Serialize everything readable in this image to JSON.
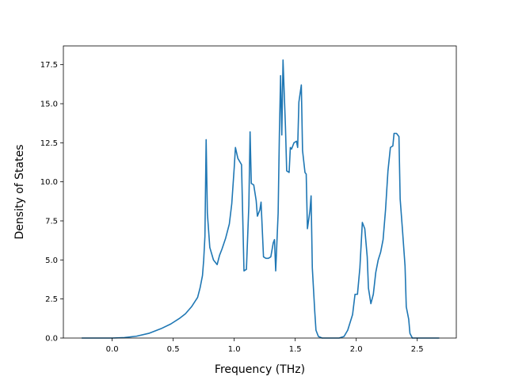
{
  "chart_data": {
    "type": "line",
    "title": "",
    "xlabel": "Frequency (THz)",
    "ylabel": "Density of States",
    "xlim": [
      -0.4,
      2.82
    ],
    "ylim": [
      0,
      18.7
    ],
    "grid": false,
    "legend": "none",
    "color": "#1f77b4",
    "x_ticks": [
      {
        "value": 0.0,
        "label": "0.0"
      },
      {
        "value": 0.5,
        "label": "0.5"
      },
      {
        "value": 1.0,
        "label": "1.0"
      },
      {
        "value": 1.5,
        "label": "1.5"
      },
      {
        "value": 2.0,
        "label": "2.0"
      },
      {
        "value": 2.5,
        "label": "2.5"
      }
    ],
    "y_ticks": [
      {
        "value": 0.0,
        "label": "0.0"
      },
      {
        "value": 2.5,
        "label": "2.5"
      },
      {
        "value": 5.0,
        "label": "5.0"
      },
      {
        "value": 7.5,
        "label": "7.5"
      },
      {
        "value": 10.0,
        "label": "10.0"
      },
      {
        "value": 12.5,
        "label": "12.5"
      },
      {
        "value": 15.0,
        "label": "15.0"
      },
      {
        "value": 17.5,
        "label": "17.5"
      }
    ],
    "series": [
      {
        "points": [
          [
            -0.25,
            0.0
          ],
          [
            -0.1,
            0.0
          ],
          [
            0.0,
            0.0
          ],
          [
            0.1,
            0.03
          ],
          [
            0.2,
            0.12
          ],
          [
            0.3,
            0.3
          ],
          [
            0.4,
            0.6
          ],
          [
            0.48,
            0.9
          ],
          [
            0.55,
            1.25
          ],
          [
            0.6,
            1.55
          ],
          [
            0.65,
            2.0
          ],
          [
            0.7,
            2.6
          ],
          [
            0.72,
            3.2
          ],
          [
            0.74,
            4.0
          ],
          [
            0.75,
            5.0
          ],
          [
            0.76,
            6.5
          ],
          [
            0.77,
            12.7
          ],
          [
            0.78,
            8.0
          ],
          [
            0.8,
            5.8
          ],
          [
            0.83,
            5.0
          ],
          [
            0.85,
            4.8
          ],
          [
            0.86,
            4.7
          ],
          [
            0.88,
            5.3
          ],
          [
            0.9,
            5.7
          ],
          [
            0.93,
            6.4
          ],
          [
            0.96,
            7.3
          ],
          [
            0.98,
            8.6
          ],
          [
            1.0,
            10.9
          ],
          [
            1.01,
            12.2
          ],
          [
            1.03,
            11.5
          ],
          [
            1.06,
            11.1
          ],
          [
            1.08,
            4.3
          ],
          [
            1.1,
            4.4
          ],
          [
            1.12,
            8.5
          ],
          [
            1.13,
            13.2
          ],
          [
            1.14,
            9.9
          ],
          [
            1.16,
            9.8
          ],
          [
            1.18,
            8.8
          ],
          [
            1.19,
            7.8
          ],
          [
            1.21,
            8.2
          ],
          [
            1.22,
            8.7
          ],
          [
            1.24,
            5.2
          ],
          [
            1.26,
            5.1
          ],
          [
            1.28,
            5.1
          ],
          [
            1.3,
            5.2
          ],
          [
            1.32,
            6.1
          ],
          [
            1.33,
            6.3
          ],
          [
            1.34,
            4.3
          ],
          [
            1.36,
            8.0
          ],
          [
            1.37,
            13.0
          ],
          [
            1.38,
            16.8
          ],
          [
            1.39,
            13.0
          ],
          [
            1.4,
            17.8
          ],
          [
            1.42,
            13.5
          ],
          [
            1.43,
            10.7
          ],
          [
            1.45,
            10.6
          ],
          [
            1.46,
            12.2
          ],
          [
            1.47,
            12.1
          ],
          [
            1.49,
            12.5
          ],
          [
            1.51,
            12.6
          ],
          [
            1.52,
            12.2
          ],
          [
            1.53,
            15.1
          ],
          [
            1.55,
            16.2
          ],
          [
            1.56,
            12.0
          ],
          [
            1.58,
            10.6
          ],
          [
            1.59,
            10.5
          ],
          [
            1.6,
            7.0
          ],
          [
            1.62,
            8.1
          ],
          [
            1.63,
            9.1
          ],
          [
            1.64,
            4.5
          ],
          [
            1.66,
            1.7
          ],
          [
            1.67,
            0.5
          ],
          [
            1.69,
            0.1
          ],
          [
            1.72,
            0.0
          ],
          [
            1.8,
            0.0
          ],
          [
            1.86,
            0.0
          ],
          [
            1.9,
            0.1
          ],
          [
            1.93,
            0.5
          ],
          [
            1.95,
            1.0
          ],
          [
            1.97,
            1.5
          ],
          [
            1.99,
            2.8
          ],
          [
            2.01,
            2.8
          ],
          [
            2.03,
            4.5
          ],
          [
            2.05,
            7.4
          ],
          [
            2.07,
            7.0
          ],
          [
            2.09,
            5.2
          ],
          [
            2.1,
            3.2
          ],
          [
            2.12,
            2.2
          ],
          [
            2.14,
            2.8
          ],
          [
            2.16,
            4.2
          ],
          [
            2.18,
            5.0
          ],
          [
            2.2,
            5.5
          ],
          [
            2.22,
            6.3
          ],
          [
            2.24,
            8.2
          ],
          [
            2.26,
            10.7
          ],
          [
            2.28,
            12.2
          ],
          [
            2.3,
            12.3
          ],
          [
            2.31,
            13.1
          ],
          [
            2.33,
            13.1
          ],
          [
            2.35,
            12.9
          ],
          [
            2.36,
            8.9
          ],
          [
            2.38,
            6.8
          ],
          [
            2.4,
            4.6
          ],
          [
            2.41,
            2.0
          ],
          [
            2.43,
            1.2
          ],
          [
            2.44,
            0.3
          ],
          [
            2.46,
            0.0
          ],
          [
            2.55,
            0.0
          ],
          [
            2.68,
            0.0
          ]
        ]
      }
    ]
  }
}
